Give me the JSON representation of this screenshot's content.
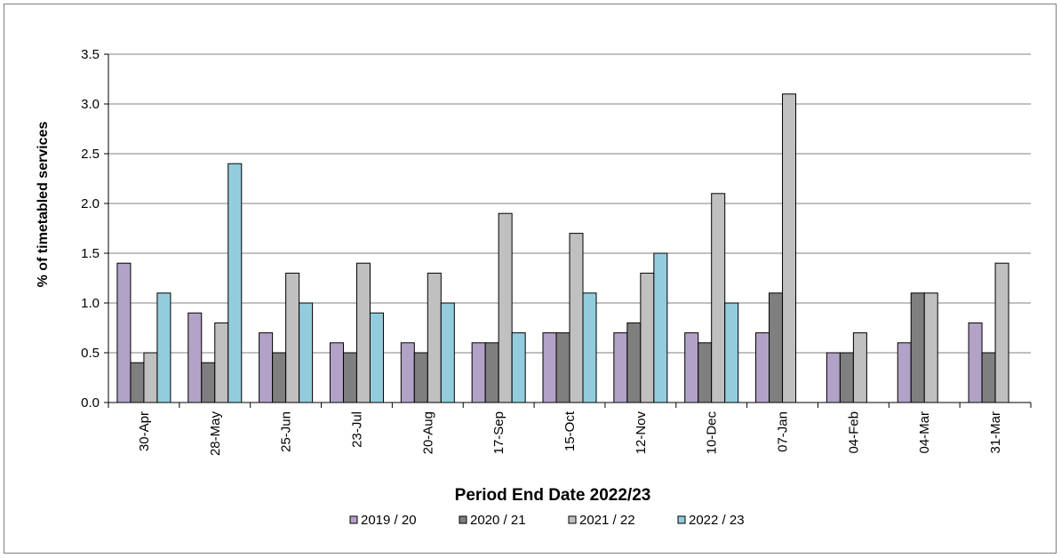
{
  "chart_data": {
    "type": "bar",
    "xlabel": "Period End Date 2022/23",
    "ylabel": "% of timetabled services",
    "ylim": [
      0,
      3.5
    ],
    "yticks": [
      "0.0",
      "0.5",
      "1.0",
      "1.5",
      "2.0",
      "2.5",
      "3.0",
      "3.5"
    ],
    "grid": true,
    "legend_position": "bottom",
    "categories": [
      "30-Apr",
      "28-May",
      "25-Jun",
      "23-Jul",
      "20-Aug",
      "17-Sep",
      "15-Oct",
      "12-Nov",
      "10-Dec",
      "07-Jan",
      "04-Feb",
      "04-Mar",
      "31-Mar"
    ],
    "series": [
      {
        "name": "2019 / 20",
        "color": "#b3a2c7",
        "values": [
          1.4,
          0.9,
          0.7,
          0.6,
          0.6,
          0.6,
          0.7,
          0.7,
          0.7,
          0.7,
          0.5,
          0.6,
          0.8
        ]
      },
      {
        "name": "2020 / 21",
        "color": "#7f7f7f",
        "values": [
          0.4,
          0.4,
          0.5,
          0.5,
          0.5,
          0.6,
          0.7,
          0.8,
          0.6,
          1.1,
          0.5,
          1.1,
          0.5
        ]
      },
      {
        "name": "2021 / 22",
        "color": "#c0c0c0",
        "values": [
          0.5,
          0.8,
          1.3,
          1.4,
          1.3,
          1.9,
          1.7,
          1.3,
          2.1,
          3.1,
          0.7,
          1.1,
          1.4
        ]
      },
      {
        "name": "2022 / 23",
        "color": "#93cddd",
        "values": [
          1.1,
          2.4,
          1.0,
          0.9,
          1.0,
          0.7,
          1.1,
          1.5,
          1.0,
          null,
          null,
          null,
          null
        ]
      }
    ]
  }
}
